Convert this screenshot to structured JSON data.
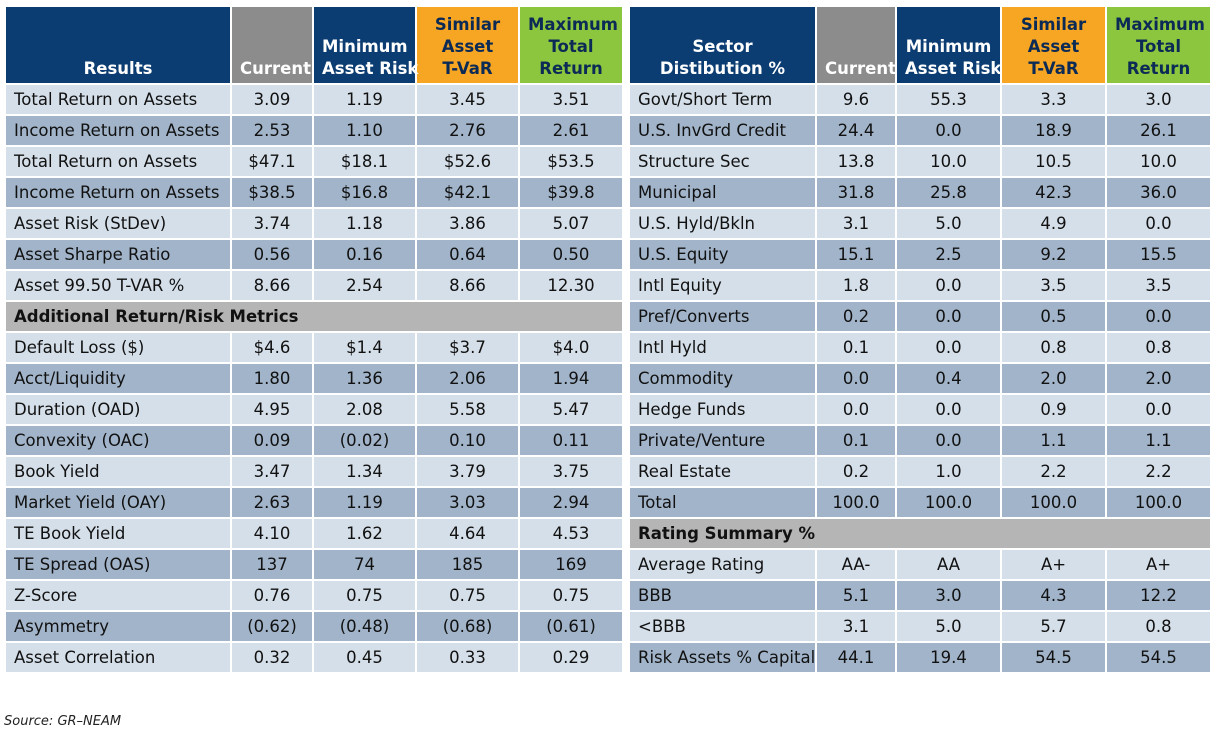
{
  "left": {
    "header": [
      [
        "Results"
      ],
      [
        "Current"
      ],
      [
        "Minimum",
        "Asset Risk"
      ],
      [
        "Similar",
        "Asset",
        "T-VaR"
      ],
      [
        "Maximum",
        "Total",
        "Return"
      ]
    ],
    "rows": [
      [
        "Total Return on Assets",
        "3.09",
        "1.19",
        "3.45",
        "3.51"
      ],
      [
        "Income Return on Assets",
        "2.53",
        "1.10",
        "2.76",
        "2.61"
      ],
      [
        "Total Return on Assets",
        "$47.1",
        "$18.1",
        "$52.6",
        "$53.5"
      ],
      [
        "Income Return on Assets",
        "$38.5",
        "$16.8",
        "$42.1",
        "$39.8"
      ],
      [
        "Asset Risk (StDev)",
        "3.74",
        "1.18",
        "3.86",
        "5.07"
      ],
      [
        "Asset Sharpe Ratio",
        "0.56",
        "0.16",
        "0.64",
        "0.50"
      ],
      [
        "Asset 99.50 T-VAR %",
        "8.66",
        "2.54",
        "8.66",
        "12.30"
      ]
    ],
    "section": "Additional Return/Risk Metrics",
    "section_rows": [
      [
        "Default Loss ($)",
        "$4.6",
        "$1.4",
        "$3.7",
        "$4.0"
      ],
      [
        "Acct/Liquidity",
        "1.80",
        "1.36",
        "2.06",
        "1.94"
      ],
      [
        "Duration (OAD)",
        "4.95",
        "2.08",
        "5.58",
        "5.47"
      ],
      [
        "Convexity (OAC)",
        "0.09",
        "(0.02)",
        "0.10",
        "0.11"
      ],
      [
        "Book Yield",
        "3.47",
        "1.34",
        "3.79",
        "3.75"
      ],
      [
        "Market Yield (OAY)",
        "2.63",
        "1.19",
        "3.03",
        "2.94"
      ],
      [
        "TE Book Yield",
        "4.10",
        "1.62",
        "4.64",
        "4.53"
      ],
      [
        "TE Spread (OAS)",
        "137",
        "74",
        "185",
        "169"
      ],
      [
        "Z-Score",
        "0.76",
        "0.75",
        "0.75",
        "0.75"
      ],
      [
        "Asymmetry",
        "(0.62)",
        "(0.48)",
        "(0.68)",
        "(0.61)"
      ],
      [
        "Asset Correlation",
        "0.32",
        "0.45",
        "0.33",
        "0.29"
      ]
    ]
  },
  "right": {
    "header": [
      [
        "Sector",
        "Distibution %"
      ],
      [
        "Current"
      ],
      [
        "Minimum",
        "Asset Risk"
      ],
      [
        "Similar",
        "Asset",
        "T-VaR"
      ],
      [
        "Maximum",
        "Total",
        "Return"
      ]
    ],
    "rows": [
      [
        "Govt/Short Term",
        "9.6",
        "55.3",
        "3.3",
        "3.0"
      ],
      [
        "U.S. InvGrd Credit",
        "24.4",
        "0.0",
        "18.9",
        "26.1"
      ],
      [
        "Structure Sec",
        "13.8",
        "10.0",
        "10.5",
        "10.0"
      ],
      [
        "Municipal",
        "31.8",
        "25.8",
        "42.3",
        "36.0"
      ],
      [
        "U.S. Hyld/Bkln",
        "3.1",
        "5.0",
        "4.9",
        "0.0"
      ],
      [
        "U.S. Equity",
        "15.1",
        "2.5",
        "9.2",
        "15.5"
      ],
      [
        "Intl Equity",
        "1.8",
        "0.0",
        "3.5",
        "3.5"
      ],
      [
        "Pref/Converts",
        "0.2",
        "0.0",
        "0.5",
        "0.0"
      ],
      [
        "Intl Hyld",
        "0.1",
        "0.0",
        "0.8",
        "0.8"
      ],
      [
        "Commodity",
        "0.0",
        "0.4",
        "2.0",
        "2.0"
      ],
      [
        "Hedge Funds",
        "0.0",
        "0.0",
        "0.9",
        "0.0"
      ],
      [
        "Private/Venture",
        "0.1",
        "0.0",
        "1.1",
        "1.1"
      ],
      [
        "Real Estate",
        "0.2",
        "1.0",
        "2.2",
        "2.2"
      ],
      [
        "Total",
        "100.0",
        "100.0",
        "100.0",
        "100.0"
      ]
    ],
    "section": "Rating Summary %",
    "section_rows": [
      [
        "Average Rating",
        "AA-",
        "AA",
        "A+",
        "A+"
      ],
      [
        "BBB",
        "5.1",
        "3.0",
        "4.3",
        "12.2"
      ],
      [
        "<BBB",
        "3.1",
        "5.0",
        "5.7",
        "0.8"
      ],
      [
        "Risk Assets % Capital",
        "44.1",
        "19.4",
        "54.5",
        "54.5"
      ]
    ]
  },
  "source": "Source: GR–NEAM"
}
